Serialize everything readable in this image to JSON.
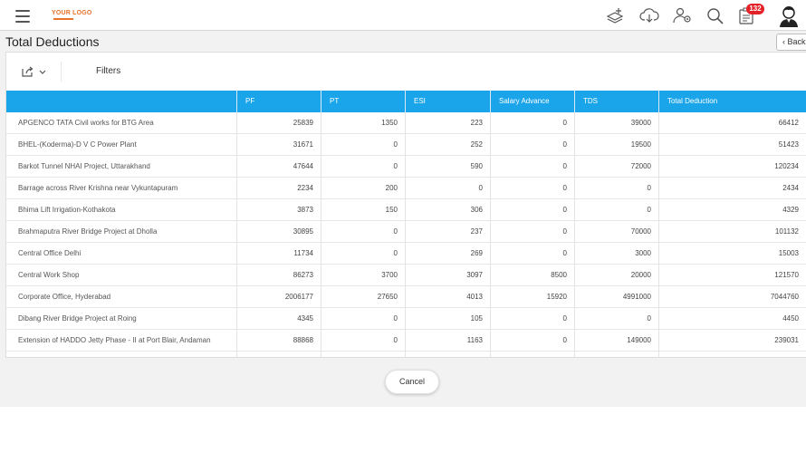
{
  "header": {
    "logo_text": "YOUR LOGO",
    "notification_count": "132",
    "icons": [
      "menu-icon",
      "add-layers-icon",
      "cloud-download-icon",
      "users-settings-icon",
      "search-icon",
      "clipboard-icon",
      "user-avatar-icon"
    ],
    "colors": {
      "badge": "#e32228",
      "logo": "#e9712a"
    }
  },
  "page": {
    "title": "Total Deductions",
    "back_label": "Back"
  },
  "toolbar": {
    "export_icon": "share-export-icon",
    "filters_label": "Filters"
  },
  "table": {
    "header_color": "#1aa5ea",
    "columns": [
      "",
      "PF",
      "PT",
      "ESI",
      "Salary Advance",
      "TDS",
      "Total Deduction"
    ],
    "rows": [
      [
        "APGENCO TATA Civil works for BTG Area",
        "25839",
        "1350",
        "223",
        "0",
        "39000",
        "66412"
      ],
      [
        "BHEL-(Koderma)-D V C Power Plant",
        "31671",
        "0",
        "252",
        "0",
        "19500",
        "51423"
      ],
      [
        "Barkot Tunnel NHAI Project, Uttarakhand",
        "47644",
        "0",
        "590",
        "0",
        "72000",
        "120234"
      ],
      [
        "Barrage across River Krishna near Vykuntapuram",
        "2234",
        "200",
        "0",
        "0",
        "0",
        "2434"
      ],
      [
        "Bhima Lift Irrigation-Kothakota",
        "3873",
        "150",
        "306",
        "0",
        "0",
        "4329"
      ],
      [
        "Brahmaputra River Bridge Project at Dholla",
        "30895",
        "0",
        "237",
        "0",
        "70000",
        "101132"
      ],
      [
        "Central Office Delhi",
        "11734",
        "0",
        "269",
        "0",
        "3000",
        "15003"
      ],
      [
        "Central Work Shop",
        "86273",
        "3700",
        "3097",
        "8500",
        "20000",
        "121570"
      ],
      [
        "Corporate Office, Hyderabad",
        "2006177",
        "27650",
        "4013",
        "15920",
        "4991000",
        "7044760"
      ],
      [
        "Dibang River Bridge Project at Roing",
        "4345",
        "0",
        "105",
        "0",
        "0",
        "4450"
      ],
      [
        "Extension of HADDO Jetty Phase - II at Port Blair, Andaman",
        "88868",
        "0",
        "1163",
        "0",
        "149000",
        "239031"
      ]
    ]
  },
  "footer": {
    "cancel_label": "Cancel"
  }
}
